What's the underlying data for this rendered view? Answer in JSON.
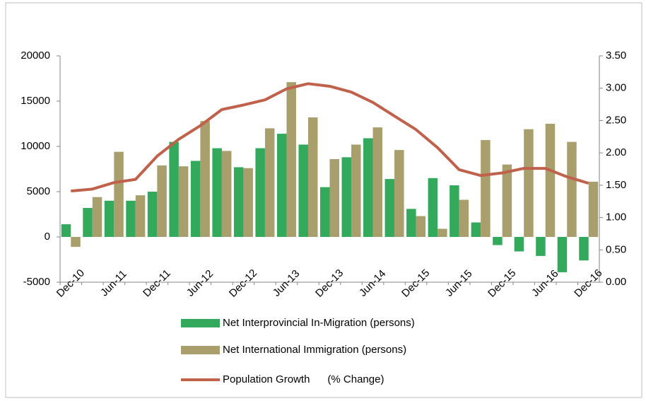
{
  "chart_data": {
    "type": "bar-line",
    "categories": [
      "Dec-10",
      null,
      "Jun-11",
      null,
      "Dec-11",
      null,
      "Jun-12",
      null,
      "Dec-12",
      null,
      "Jun-13",
      null,
      "Dec-13",
      null,
      "Jun-14",
      null,
      "Dec-15",
      null,
      "Jun-15",
      null,
      "Dec-15",
      null,
      "Jun-16",
      null,
      "Dec-16"
    ],
    "series": [
      {
        "name": "Net Interprovincial In-Migration (persons)",
        "color": "#33a95c",
        "type": "bar",
        "values": [
          1400,
          3200,
          4000,
          4000,
          5000,
          10500,
          8400,
          9800,
          7700,
          9800,
          11400,
          10200,
          5500,
          8800,
          10900,
          6400,
          3100,
          6500,
          5700,
          1600,
          -900,
          -1600,
          -2100,
          -3900,
          -2600
        ]
      },
      {
        "name": "Net International Immigration (persons)",
        "color": "#a99f6c",
        "type": "bar",
        "values": [
          -1100,
          4400,
          9400,
          4600,
          7900,
          7800,
          12800,
          9500,
          7600,
          12000,
          17100,
          13200,
          8600,
          10200,
          12100,
          9600,
          2300,
          900,
          4100,
          10700,
          8000,
          11900,
          12500,
          10500,
          6100
        ]
      },
      {
        "name": "Population Growth      (% Change)",
        "color": "#c0614b",
        "type": "line",
        "axis": "y2",
        "values": [
          1.41,
          1.44,
          1.54,
          1.59,
          1.95,
          2.21,
          2.42,
          2.67,
          2.74,
          2.82,
          2.99,
          3.07,
          3.03,
          2.94,
          2.78,
          2.57,
          2.36,
          2.08,
          1.74,
          1.65,
          1.69,
          1.76,
          1.76,
          1.63,
          1.53
        ]
      }
    ],
    "ylim": [
      -5000,
      20000
    ],
    "yticks": [
      -5000,
      0,
      5000,
      10000,
      15000,
      20000
    ],
    "y2lim": [
      0,
      3.5
    ],
    "y2ticks": [
      {
        "value": 0,
        "label": "0.00"
      },
      {
        "value": 0.5,
        "label": "0.50"
      },
      {
        "value": 1,
        "label": "1.00"
      },
      {
        "value": 1.5,
        "label": "1.50"
      },
      {
        "value": 2,
        "label": "2.00"
      },
      {
        "value": 2.5,
        "label": "2.50"
      },
      {
        "value": 3,
        "label": "3.00"
      },
      {
        "value": 3.5,
        "label": "3.50"
      }
    ],
    "legend": "bottom",
    "grid": false
  }
}
